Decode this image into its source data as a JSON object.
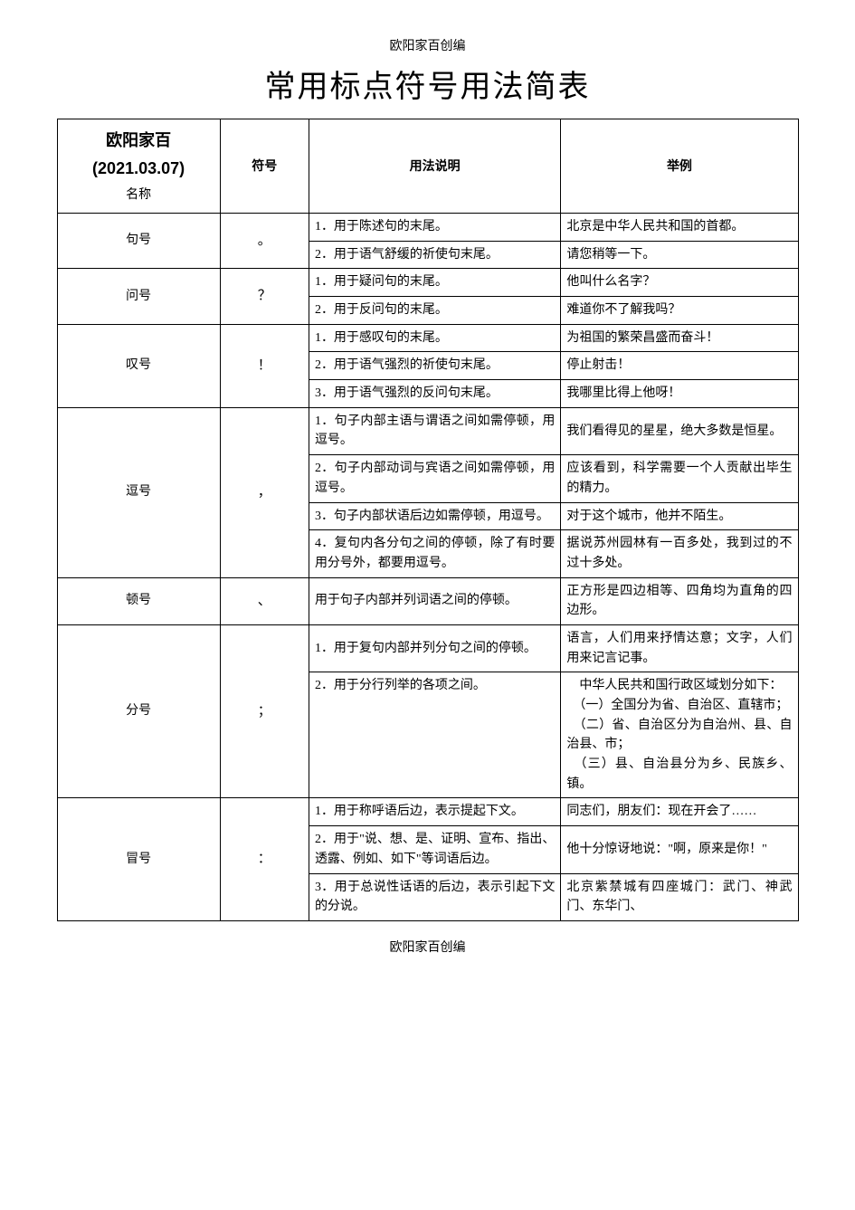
{
  "meta": {
    "header_small": "欧阳家百创编",
    "footer_small": "欧阳家百创编",
    "title": "常用标点符号用法简表"
  },
  "headers": {
    "name_main": "欧阳家百",
    "name_date": "(2021.03.07)",
    "name_sub": "名称",
    "symbol": "符号",
    "usage": "用法说明",
    "example": "举例"
  },
  "rows": {
    "juhao": {
      "name": "句号",
      "symbol": "。",
      "u1": "1．用于陈述句的末尾。",
      "e1": "北京是中华人民共和国的首都。",
      "u2": "2．用于语气舒缓的祈使句末尾。",
      "e2": "请您稍等一下。"
    },
    "wenhao": {
      "name": "问号",
      "symbol": "？",
      "u1": "1．用于疑问句的末尾。",
      "e1": "他叫什么名字？",
      "u2": "2．用于反问句的末尾。",
      "e2": "难道你不了解我吗？"
    },
    "tanhao": {
      "name": "叹号",
      "symbol": "！",
      "u1": "1．用于感叹句的末尾。",
      "e1": "为祖国的繁荣昌盛而奋斗！",
      "u2": "2．用于语气强烈的祈使句末尾。",
      "e2": "停止射击！",
      "u3": "3．用于语气强烈的反问句末尾。",
      "e3": "我哪里比得上他呀！"
    },
    "douhao": {
      "name": "逗号",
      "symbol": "，",
      "u1": "1．句子内部主语与谓语之间如需停顿，用逗号。",
      "e1": "我们看得见的星星，绝大多数是恒星。",
      "u2": "2．句子内部动词与宾语之间如需停顿，用逗号。",
      "e2": "应该看到，科学需要一个人贡献出毕生的精力。",
      "u3": "3．句子内部状语后边如需停顿，用逗号。",
      "e3": "对于这个城市，他并不陌生。",
      "u4": "4．复句内各分句之间的停顿，除了有时要用分号外，都要用逗号。",
      "e4": "据说苏州园林有一百多处，我到过的不过十多处。"
    },
    "dunhao": {
      "name": "顿号",
      "symbol": "、",
      "u1": "用于句子内部并列词语之间的停顿。",
      "e1": "正方形是四边相等、四角均为直角的四边形。"
    },
    "fenhao": {
      "name": "分号",
      "symbol": "；",
      "u1": "1．用于复句内部并列分句之间的停顿。",
      "e1": "语言，人们用来抒情达意；文字，人们用来记言记事。",
      "u2": "2．用于分行列举的各项之间。",
      "e2_l1": "　中华人民共和国行政区域划分如下：",
      "e2_l2": "　（一）全国分为省、自治区、直辖市；",
      "e2_l3": "　（二）省、自治区分为自治州、县、自治县、市；",
      "e2_l4": "　（三）县、自治县分为乡、民族乡、镇。"
    },
    "maohao": {
      "name": "冒号",
      "symbol": "：",
      "u1": "1．用于称呼语后边，表示提起下文。",
      "e1": "同志们，朋友们：现在开会了……",
      "u2": "2．用于\"说、想、是、证明、宣布、指出、透露、例如、如下\"等词语后边。",
      "e2": "他十分惊讶地说：\"啊，原来是你！\"",
      "u3": "3．用于总说性话语的后边，表示引起下文的分说。",
      "e3": "北京紫禁城有四座城门：武门、神武门、东华门、"
    }
  },
  "style": {
    "border_color": "#000000",
    "background": "#ffffff",
    "title_fontsize": 34,
    "body_fontsize": 14,
    "line_height": 1.55
  }
}
